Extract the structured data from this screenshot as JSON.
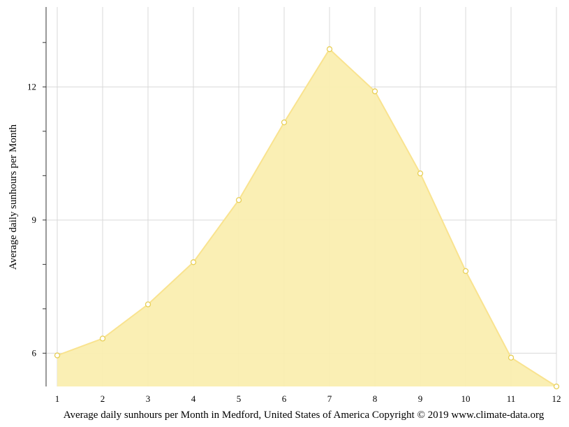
{
  "chart_data": {
    "type": "area",
    "x": [
      1,
      2,
      3,
      4,
      5,
      6,
      7,
      8,
      9,
      10,
      11,
      12
    ],
    "series": [
      {
        "values": [
          5.95,
          6.33,
          7.1,
          8.05,
          9.45,
          11.2,
          12.85,
          11.9,
          10.05,
          7.85,
          5.9,
          5.25
        ]
      }
    ],
    "ylabel": "Average daily sunhours per Month",
    "xlabel": "Average daily sunhours per Month in Medford, United States of America Copyright © 2019 www.climate-data.org",
    "ylim": [
      5.25,
      13.8
    ],
    "xlim": [
      1,
      12
    ],
    "y_ticks": [
      6,
      9,
      12
    ],
    "y_minor_ticks": [
      7,
      8,
      10,
      11,
      13
    ],
    "grid": true,
    "colors": {
      "fill": "#faeeb0",
      "line": "#f9e38f",
      "marker_stroke": "#e8cf55",
      "marker_fill": "#ffffff"
    }
  }
}
